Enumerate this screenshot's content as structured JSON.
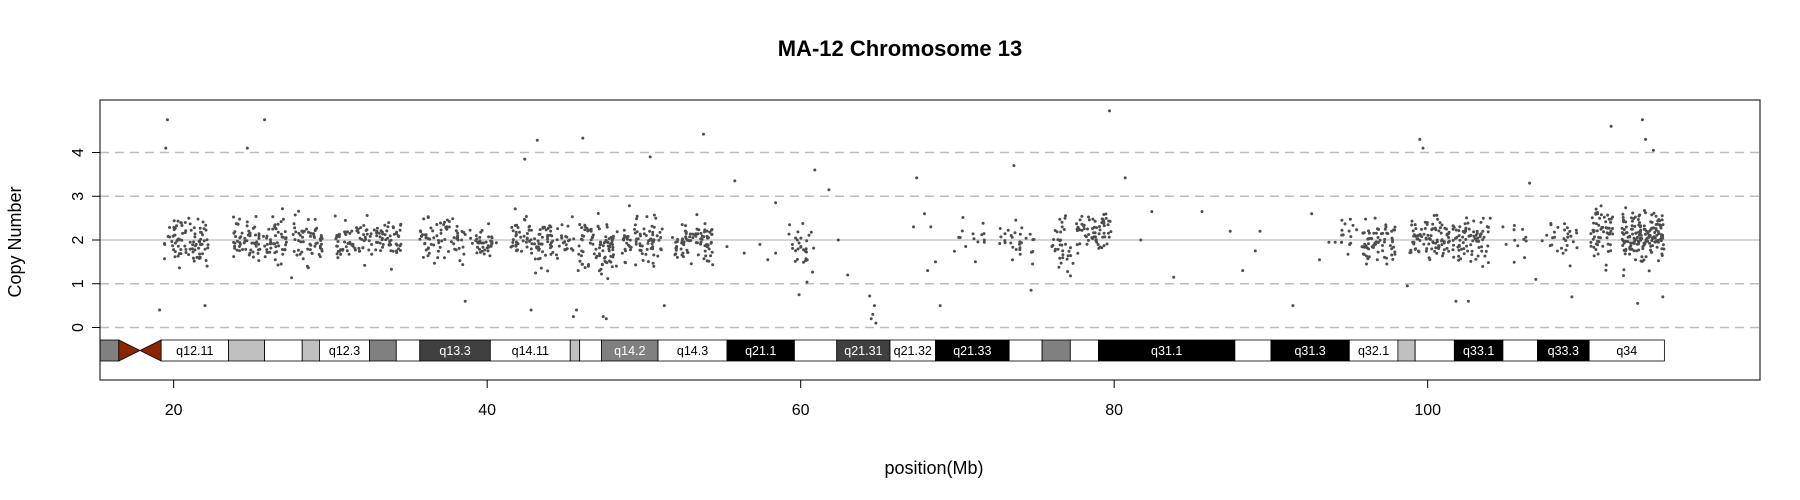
{
  "chart_data": {
    "type": "scatter",
    "title": "MA-12  Chromosome 13",
    "xlabel": "position(Mb)",
    "ylabel": "Copy Number",
    "xlim": [
      15.3,
      121.2
    ],
    "ylim": [
      -1.2,
      5.2
    ],
    "x_ticks": [
      20,
      40,
      60,
      80,
      100
    ],
    "y_ticks": [
      0,
      1,
      2,
      3,
      4
    ],
    "dashed_reference_lines": [
      0,
      1,
      3,
      4
    ],
    "solid_reference_line": 2,
    "point_color": "#4d4d4d",
    "centromere_color": "#8b2500",
    "ideogram": {
      "centromere": [
        16.5,
        19.2
      ],
      "bands": [
        {
          "start": 15.3,
          "end": 16.5,
          "label": "",
          "fill": "#808080"
        },
        {
          "start": 19.2,
          "end": 23.5,
          "label": "q12.11",
          "fill": "#ffffff"
        },
        {
          "start": 23.5,
          "end": 25.8,
          "label": "",
          "fill": "#c0c0c0"
        },
        {
          "start": 25.8,
          "end": 28.2,
          "label": "",
          "fill": "#ffffff"
        },
        {
          "start": 28.2,
          "end": 29.3,
          "label": "",
          "fill": "#c0c0c0"
        },
        {
          "start": 29.3,
          "end": 32.5,
          "label": "q12.3",
          "fill": "#ffffff"
        },
        {
          "start": 32.5,
          "end": 34.2,
          "label": "",
          "fill": "#808080"
        },
        {
          "start": 34.2,
          "end": 35.7,
          "label": "",
          "fill": "#ffffff"
        },
        {
          "start": 35.7,
          "end": 40.2,
          "label": "q13.3",
          "fill": "#404040"
        },
        {
          "start": 40.2,
          "end": 45.3,
          "label": "q14.11",
          "fill": "#ffffff"
        },
        {
          "start": 45.3,
          "end": 45.9,
          "label": "",
          "fill": "#c0c0c0"
        },
        {
          "start": 45.9,
          "end": 47.3,
          "label": "",
          "fill": "#ffffff"
        },
        {
          "start": 47.3,
          "end": 50.9,
          "label": "q14.2",
          "fill": "#808080"
        },
        {
          "start": 50.9,
          "end": 55.3,
          "label": "q14.3",
          "fill": "#ffffff"
        },
        {
          "start": 55.3,
          "end": 59.6,
          "label": "q21.1",
          "fill": "#000000"
        },
        {
          "start": 59.6,
          "end": 62.3,
          "label": "",
          "fill": "#ffffff"
        },
        {
          "start": 62.3,
          "end": 65.7,
          "label": "q21.31",
          "fill": "#404040"
        },
        {
          "start": 65.7,
          "end": 68.6,
          "label": "q21.32",
          "fill": "#ffffff"
        },
        {
          "start": 68.6,
          "end": 73.3,
          "label": "q21.33",
          "fill": "#000000"
        },
        {
          "start": 73.3,
          "end": 75.4,
          "label": "",
          "fill": "#ffffff"
        },
        {
          "start": 75.4,
          "end": 77.2,
          "label": "",
          "fill": "#808080"
        },
        {
          "start": 77.2,
          "end": 79.0,
          "label": "",
          "fill": "#ffffff"
        },
        {
          "start": 79.0,
          "end": 87.7,
          "label": "q31.1",
          "fill": "#000000"
        },
        {
          "start": 87.7,
          "end": 90.0,
          "label": "",
          "fill": "#ffffff"
        },
        {
          "start": 90.0,
          "end": 95.0,
          "label": "q31.3",
          "fill": "#000000"
        },
        {
          "start": 95.0,
          "end": 98.1,
          "label": "q32.1",
          "fill": "#ffffff"
        },
        {
          "start": 98.1,
          "end": 99.2,
          "label": "",
          "fill": "#c0c0c0"
        },
        {
          "start": 99.2,
          "end": 101.7,
          "label": "",
          "fill": "#ffffff"
        },
        {
          "start": 101.7,
          "end": 104.8,
          "label": "q33.1",
          "fill": "#000000"
        },
        {
          "start": 104.8,
          "end": 107.0,
          "label": "",
          "fill": "#ffffff"
        },
        {
          "start": 107.0,
          "end": 110.3,
          "label": "q33.3",
          "fill": "#000000"
        },
        {
          "start": 110.3,
          "end": 115.1,
          "label": "q34",
          "fill": "#ffffff"
        }
      ]
    },
    "point_clusters": [
      {
        "x_range": [
          19.4,
          22.2
        ],
        "n": 90,
        "center": 2.0,
        "spread": 0.48
      },
      {
        "x_range": [
          23.8,
          27.2
        ],
        "n": 110,
        "center": 2.0,
        "spread": 0.45
      },
      {
        "x_range": [
          27.5,
          29.6
        ],
        "n": 60,
        "center": 2.0,
        "spread": 0.45
      },
      {
        "x_range": [
          30.3,
          32.7
        ],
        "n": 65,
        "center": 1.95,
        "spread": 0.4
      },
      {
        "x_range": [
          32.8,
          34.6
        ],
        "n": 55,
        "center": 2.0,
        "spread": 0.42
      },
      {
        "x_range": [
          35.7,
          38.6
        ],
        "n": 75,
        "center": 2.0,
        "spread": 0.4
      },
      {
        "x_range": [
          38.9,
          40.6
        ],
        "n": 40,
        "center": 1.95,
        "spread": 0.4
      },
      {
        "x_range": [
          41.5,
          44.2
        ],
        "n": 90,
        "center": 1.95,
        "spread": 0.45
      },
      {
        "x_range": [
          44.4,
          45.6
        ],
        "n": 25,
        "center": 2.0,
        "spread": 0.4
      },
      {
        "x_range": [
          45.8,
          48.3
        ],
        "n": 90,
        "center": 1.85,
        "spread": 0.55
      },
      {
        "x_range": [
          48.6,
          51.2
        ],
        "n": 80,
        "center": 1.95,
        "spread": 0.48
      },
      {
        "x_range": [
          51.8,
          54.4
        ],
        "n": 85,
        "center": 1.95,
        "spread": 0.45
      },
      {
        "x_range": [
          59.2,
          60.9
        ],
        "n": 30,
        "center": 1.9,
        "spread": 0.55
      },
      {
        "x_range": [
          69.8,
          71.8
        ],
        "n": 15,
        "center": 2.0,
        "spread": 0.5
      },
      {
        "x_range": [
          72.4,
          74.9
        ],
        "n": 30,
        "center": 2.0,
        "spread": 0.5
      },
      {
        "x_range": [
          76.0,
          77.4
        ],
        "n": 35,
        "center": 1.9,
        "spread": 0.5
      },
      {
        "x_range": [
          77.6,
          79.8
        ],
        "n": 70,
        "center": 2.15,
        "spread": 0.45
      },
      {
        "x_range": [
          94.3,
          95.6
        ],
        "n": 15,
        "center": 2.0,
        "spread": 0.45
      },
      {
        "x_range": [
          95.8,
          98.0
        ],
        "n": 70,
        "center": 1.95,
        "spread": 0.45
      },
      {
        "x_range": [
          98.8,
          101.4
        ],
        "n": 90,
        "center": 2.0,
        "spread": 0.45
      },
      {
        "x_range": [
          101.5,
          104.0
        ],
        "n": 80,
        "center": 2.0,
        "spread": 0.42
      },
      {
        "x_range": [
          105.5,
          106.3
        ],
        "n": 10,
        "center": 2.0,
        "spread": 0.4
      },
      {
        "x_range": [
          107.3,
          109.6
        ],
        "n": 30,
        "center": 2.0,
        "spread": 0.45
      },
      {
        "x_range": [
          110.4,
          111.8
        ],
        "n": 60,
        "center": 2.1,
        "spread": 0.55
      },
      {
        "x_range": [
          112.4,
          115.1
        ],
        "n": 170,
        "center": 2.1,
        "spread": 0.5
      }
    ],
    "point_extras": [
      [
        19.6,
        4.75
      ],
      [
        19.5,
        4.1
      ],
      [
        25.8,
        4.75
      ],
      [
        24.7,
        4.1
      ],
      [
        43.2,
        4.28
      ],
      [
        46.1,
        4.33
      ],
      [
        53.8,
        4.42
      ],
      [
        79.7,
        4.95
      ],
      [
        99.5,
        4.3
      ],
      [
        99.7,
        4.1
      ],
      [
        113.7,
        4.75
      ],
      [
        113.9,
        4.3
      ],
      [
        111.7,
        4.6
      ],
      [
        114.4,
        4.05
      ],
      [
        50.4,
        3.9
      ],
      [
        42.4,
        3.85
      ],
      [
        55.8,
        3.35
      ],
      [
        60.9,
        3.6
      ],
      [
        73.6,
        3.7
      ],
      [
        80.7,
        3.42
      ],
      [
        67.4,
        3.42
      ],
      [
        61.8,
        3.15
      ],
      [
        58.4,
        2.85
      ],
      [
        56.4,
        1.7
      ],
      [
        57.9,
        1.55
      ],
      [
        58.4,
        1.7
      ],
      [
        57.4,
        1.9
      ],
      [
        55.3,
        1.85
      ],
      [
        59.9,
        0.75
      ],
      [
        62.4,
        2.0
      ],
      [
        64.4,
        0.72
      ],
      [
        64.7,
        0.5
      ],
      [
        64.6,
        0.3
      ],
      [
        64.5,
        0.2
      ],
      [
        64.8,
        0.1
      ],
      [
        67.2,
        2.3
      ],
      [
        67.9,
        2.6
      ],
      [
        68.3,
        2.3
      ],
      [
        68.1,
        1.3
      ],
      [
        68.9,
        0.5
      ],
      [
        68.6,
        1.5
      ],
      [
        81.7,
        2.0
      ],
      [
        82.4,
        2.65
      ],
      [
        83.8,
        1.15
      ],
      [
        85.6,
        2.65
      ],
      [
        87.4,
        2.2
      ],
      [
        88.2,
        1.3
      ],
      [
        89.3,
        2.2
      ],
      [
        89.0,
        1.75
      ],
      [
        91.4,
        0.5
      ],
      [
        92.6,
        2.6
      ],
      [
        93.1,
        1.55
      ],
      [
        93.7,
        1.95
      ],
      [
        94.1,
        1.95
      ],
      [
        106.5,
        3.3
      ],
      [
        106.9,
        1.1
      ],
      [
        104.8,
        2.3
      ],
      [
        105.0,
        1.9
      ],
      [
        109.2,
        0.7
      ],
      [
        63.0,
        1.2
      ],
      [
        74.7,
        0.85
      ],
      [
        45.7,
        0.4
      ],
      [
        45.5,
        0.25
      ],
      [
        47.6,
        0.2
      ],
      [
        47.4,
        0.25
      ],
      [
        22.0,
        0.5
      ],
      [
        19.1,
        0.4
      ],
      [
        38.6,
        0.6
      ],
      [
        42.8,
        0.4
      ],
      [
        51.3,
        0.5
      ],
      [
        98.7,
        0.95
      ],
      [
        101.8,
        0.6
      ],
      [
        102.6,
        0.6
      ],
      [
        115.0,
        0.7
      ],
      [
        113.4,
        0.55
      ]
    ]
  }
}
